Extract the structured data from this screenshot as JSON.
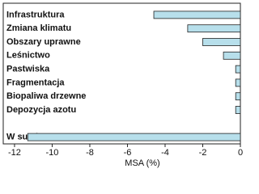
{
  "chart_data": {
    "type": "barh",
    "categories": [
      "Infrastruktura",
      "Zmiana klimatu",
      "Obszary uprawne",
      "Leśnictwo",
      "Pastwiska",
      "Fragmentacja",
      "Biopaliwa drzewne",
      "Depozycja azotu",
      null,
      "W sumie"
    ],
    "values": [
      -4.6,
      -2.8,
      -2.0,
      -0.9,
      -0.25,
      -0.25,
      -0.25,
      -0.25,
      null,
      -11.3
    ],
    "color": "#b7dfeb",
    "x_label": "MSA (%)",
    "xlim": [
      -12.6,
      0
    ],
    "xticks": [
      -12,
      -10,
      -8,
      -6,
      -4,
      -2,
      0
    ]
  }
}
